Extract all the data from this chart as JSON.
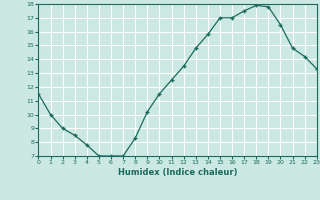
{
  "x": [
    0,
    1,
    2,
    3,
    4,
    5,
    6,
    7,
    8,
    9,
    10,
    11,
    12,
    13,
    14,
    15,
    16,
    17,
    18,
    19,
    20,
    21,
    22,
    23
  ],
  "y": [
    11.5,
    10.0,
    9.0,
    8.5,
    7.8,
    7.0,
    7.0,
    7.0,
    8.3,
    10.2,
    11.5,
    12.5,
    13.5,
    14.8,
    15.8,
    17.0,
    17.0,
    17.5,
    17.9,
    17.8,
    16.5,
    14.8,
    14.2,
    13.3
  ],
  "xlabel": "Humidex (Indice chaleur)",
  "ylim": [
    7,
    18
  ],
  "xlim": [
    0,
    23
  ],
  "yticks": [
    7,
    8,
    9,
    10,
    11,
    12,
    13,
    14,
    15,
    16,
    17,
    18
  ],
  "xticks": [
    0,
    1,
    2,
    3,
    4,
    5,
    6,
    7,
    8,
    9,
    10,
    11,
    12,
    13,
    14,
    15,
    16,
    17,
    18,
    19,
    20,
    21,
    22,
    23
  ],
  "line_color": "#1a6b5e",
  "bg_color": "#cce8e2",
  "grid_color": "#ffffff",
  "marker": "+"
}
